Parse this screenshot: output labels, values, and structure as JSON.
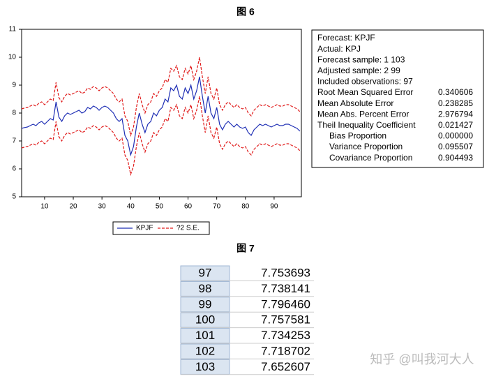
{
  "chart_data": {
    "type": "line",
    "title": "图 6",
    "x": [
      2,
      3,
      4,
      5,
      6,
      7,
      8,
      9,
      10,
      11,
      12,
      13,
      14,
      15,
      16,
      17,
      18,
      19,
      20,
      21,
      22,
      23,
      24,
      25,
      26,
      27,
      28,
      29,
      30,
      31,
      32,
      33,
      34,
      35,
      36,
      37,
      38,
      39,
      40,
      41,
      42,
      43,
      44,
      45,
      46,
      47,
      48,
      49,
      50,
      51,
      52,
      53,
      54,
      55,
      56,
      57,
      58,
      59,
      60,
      61,
      62,
      63,
      64,
      65,
      66,
      67,
      68,
      69,
      70,
      71,
      72,
      73,
      74,
      75,
      76,
      77,
      78,
      79,
      80,
      81,
      82,
      83,
      84,
      85,
      86,
      87,
      88,
      89,
      90,
      91,
      92,
      93,
      94,
      95,
      96,
      97,
      98,
      99
    ],
    "series": [
      {
        "name": "KPJF",
        "color": "#1f2fb5",
        "style": "solid",
        "values": [
          7.45,
          7.48,
          7.5,
          7.55,
          7.6,
          7.55,
          7.65,
          7.7,
          7.6,
          7.7,
          7.8,
          7.75,
          8.4,
          7.85,
          7.7,
          7.9,
          8.0,
          7.95,
          8.0,
          8.05,
          8.1,
          8.0,
          8.05,
          8.2,
          8.15,
          8.25,
          8.2,
          8.1,
          8.2,
          8.25,
          8.2,
          8.1,
          8.0,
          7.8,
          7.7,
          7.8,
          7.2,
          7.0,
          6.5,
          6.8,
          7.5,
          8.0,
          7.6,
          7.3,
          7.6,
          7.7,
          8.0,
          7.9,
          8.1,
          8.2,
          8.5,
          8.4,
          8.9,
          8.8,
          9.0,
          8.6,
          8.5,
          8.9,
          8.7,
          9.0,
          8.5,
          8.8,
          9.3,
          8.6,
          8.0,
          8.6,
          8.0,
          7.8,
          8.2,
          7.6,
          7.4,
          7.6,
          7.7,
          7.6,
          7.5,
          7.6,
          7.5,
          7.45,
          7.5,
          7.3,
          7.2,
          7.4,
          7.5,
          7.6,
          7.55,
          7.6,
          7.55,
          7.5,
          7.55,
          7.6,
          7.55,
          7.55,
          7.6,
          7.6,
          7.55,
          7.5,
          7.45,
          7.35
        ]
      },
      {
        "name": "?2 S.E.",
        "color": "#e01b1b",
        "style": "dashed",
        "upper": [
          8.15,
          8.18,
          8.2,
          8.25,
          8.3,
          8.25,
          8.35,
          8.4,
          8.3,
          8.4,
          8.5,
          8.45,
          9.1,
          8.55,
          8.4,
          8.6,
          8.7,
          8.65,
          8.7,
          8.75,
          8.8,
          8.7,
          8.75,
          8.9,
          8.85,
          8.95,
          8.9,
          8.8,
          8.9,
          8.95,
          8.9,
          8.8,
          8.7,
          8.5,
          8.4,
          8.5,
          7.9,
          7.7,
          7.2,
          7.5,
          8.2,
          8.7,
          8.3,
          8.0,
          8.3,
          8.4,
          8.7,
          8.6,
          8.8,
          8.9,
          9.2,
          9.1,
          9.6,
          9.5,
          9.7,
          9.3,
          9.2,
          9.6,
          9.4,
          9.7,
          9.2,
          9.5,
          10.0,
          9.3,
          8.7,
          9.3,
          8.7,
          8.5,
          8.9,
          8.3,
          8.1,
          8.3,
          8.4,
          8.3,
          8.2,
          8.3,
          8.2,
          8.15,
          8.2,
          8.0,
          7.9,
          8.1,
          8.2,
          8.3,
          8.25,
          8.3,
          8.25,
          8.2,
          8.25,
          8.3,
          8.25,
          8.25,
          8.3,
          8.3,
          8.25,
          8.2,
          8.15,
          8.05
        ],
        "lower": [
          6.75,
          6.78,
          6.8,
          6.85,
          6.9,
          6.85,
          6.95,
          7.0,
          6.9,
          7.0,
          7.1,
          7.05,
          7.7,
          7.15,
          7.0,
          7.2,
          7.3,
          7.25,
          7.3,
          7.35,
          7.4,
          7.3,
          7.35,
          7.5,
          7.45,
          7.55,
          7.5,
          7.4,
          7.5,
          7.55,
          7.5,
          7.4,
          7.3,
          7.1,
          7.0,
          7.1,
          6.5,
          6.3,
          5.8,
          6.1,
          6.8,
          7.3,
          6.9,
          6.6,
          6.9,
          7.0,
          7.3,
          7.2,
          7.4,
          7.5,
          7.8,
          7.7,
          8.2,
          8.1,
          8.3,
          7.9,
          7.8,
          8.2,
          8.0,
          8.3,
          7.8,
          8.1,
          8.6,
          7.9,
          7.3,
          7.9,
          7.3,
          7.1,
          7.5,
          6.9,
          6.7,
          6.9,
          7.0,
          6.9,
          6.8,
          6.9,
          6.8,
          6.75,
          6.8,
          6.6,
          6.5,
          6.7,
          6.8,
          6.9,
          6.85,
          6.9,
          6.85,
          6.8,
          6.85,
          6.9,
          6.85,
          6.85,
          6.9,
          6.9,
          6.85,
          6.8,
          6.75,
          6.65
        ]
      }
    ],
    "xlim": [
      2,
      99.5
    ],
    "xticks": [
      10,
      20,
      30,
      40,
      50,
      60,
      70,
      80,
      90
    ],
    "ylim": [
      5,
      11
    ],
    "yticks": [
      5,
      6,
      7,
      8,
      9,
      10,
      11
    ]
  },
  "stats": {
    "rows": [
      [
        "Forecast: KPJF",
        ""
      ],
      [
        "Actual: KPJ",
        ""
      ],
      [
        "Forecast sample: 1 103",
        ""
      ],
      [
        "Adjusted sample: 2 99",
        ""
      ],
      [
        "Included observations: 97",
        ""
      ],
      [
        "Root Mean Squared Error",
        "0.340606"
      ],
      [
        "Mean Absolute Error",
        "0.238285"
      ],
      [
        "Mean Abs. Percent Error",
        "2.976794"
      ],
      [
        "Theil Inequality Coefficient",
        "0.021427"
      ],
      [
        "Bias Proportion",
        "0.000000"
      ],
      [
        "Variance Proportion",
        "0.095507"
      ],
      [
        "Covariance Proportion",
        "0.904493"
      ]
    ]
  },
  "table": {
    "title": "图 7",
    "rows": [
      [
        "97",
        "7.753693"
      ],
      [
        "98",
        "7.738141"
      ],
      [
        "99",
        "7.796460"
      ],
      [
        "100",
        "7.757581"
      ],
      [
        "101",
        "7.734253"
      ],
      [
        "102",
        "7.718702"
      ],
      [
        "103",
        "7.652607"
      ]
    ]
  },
  "watermark": "知乎 @叫我河大人"
}
